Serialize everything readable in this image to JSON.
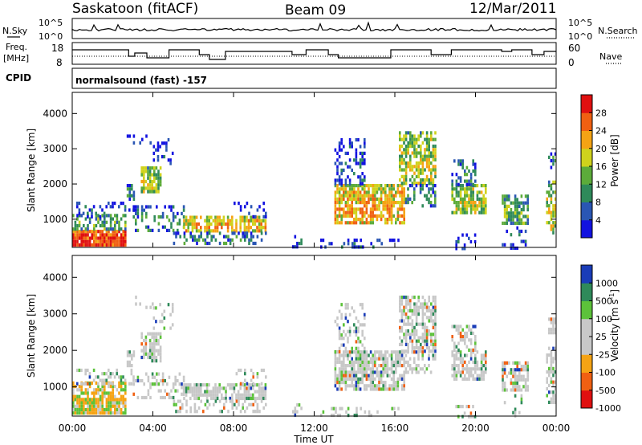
{
  "header": {
    "station": "Saskatoon (fitACF)",
    "beam": "Beam 09",
    "date": "12/Mar/2011"
  },
  "panels": {
    "nsky": {
      "label": "N.Sky",
      "ticks_left": [
        "10^5",
        "10^0"
      ],
      "ticks_right": [
        "10^5",
        "10^0"
      ],
      "right_label": "N.Search"
    },
    "freq": {
      "label_line1": "Freq.",
      "label_line2": "[MHz]",
      "ticks_left": [
        "18",
        "8"
      ],
      "ticks_right": [
        "60",
        "0"
      ],
      "right_label": "Nave"
    },
    "cpid": {
      "label": "CPID",
      "text": "normalsound (fast) -157"
    }
  },
  "colors": {
    "power": [
      "#1212e0",
      "#2a56b4",
      "#2f8a5a",
      "#5cab3a",
      "#cfd21c",
      "#f5a314",
      "#f06012",
      "#e01010"
    ],
    "velocity": [
      "#e01010",
      "#f06012",
      "#f5a314",
      "#c8c8c8",
      "#c8c8c8",
      "#5cc23a",
      "#2f8a5a",
      "#1a3cb8"
    ]
  },
  "chart_data": [
    {
      "type": "heatmap",
      "ylabel": "Slant Range [km]",
      "yticks": [
        "1000",
        "2000",
        "3000",
        "4000"
      ],
      "ylim": [
        200,
        4600
      ],
      "colorbar_label": "Power [dB]",
      "colorbar_ticks": [
        "4",
        "8",
        "12",
        "16",
        "20",
        "24",
        "28"
      ],
      "colorbar_range": [
        0,
        32
      ]
    },
    {
      "type": "heatmap",
      "ylabel": "Slant Range [km]",
      "yticks": [
        "1000",
        "2000",
        "3000",
        "4000"
      ],
      "ylim": [
        200,
        4600
      ],
      "xlabel": "Time UT",
      "xticks": [
        "00:00",
        "04:00",
        "08:00",
        "12:00",
        "16:00",
        "20:00",
        "00:00"
      ],
      "colorbar_label": "Velocity [m s^-1]",
      "colorbar_ticks": [
        "1000",
        "500",
        "100",
        "25",
        "-25",
        "-100",
        "-500",
        "-1000"
      ]
    }
  ]
}
